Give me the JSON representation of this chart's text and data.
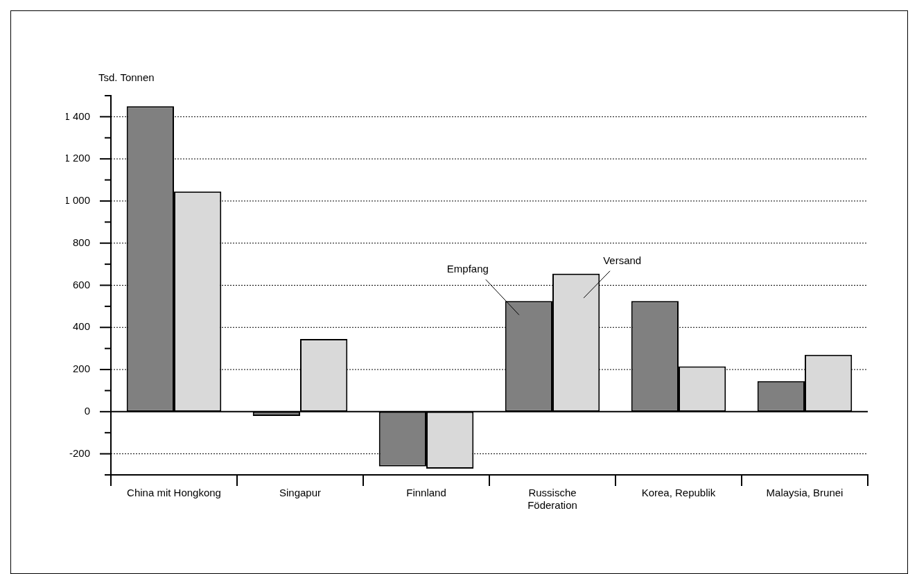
{
  "chart_data": {
    "type": "bar",
    "ylabel": "Tsd. Tonnen",
    "categories": [
      "China mit Hongkong",
      "Singapur",
      "Finnland",
      "Russische Föderation",
      "Korea, Republik",
      "Malaysia, Brunei"
    ],
    "series": [
      {
        "name": "Empfang",
        "color": "#808080",
        "values": [
          1450,
          -20,
          -260,
          525,
          525,
          145
        ]
      },
      {
        "name": "Versand",
        "color": "#d9d9d9",
        "values": [
          1045,
          345,
          -270,
          655,
          215,
          270
        ]
      }
    ],
    "ylim": [
      -300,
      1500
    ],
    "yticks": [
      {
        "value": -300,
        "label": null
      },
      {
        "value": -200,
        "label": "-200"
      },
      {
        "value": -100,
        "label": null
      },
      0,
      {
        "value": 100,
        "label": null
      },
      200,
      {
        "value": 300,
        "label": null
      },
      400,
      {
        "value": 500,
        "label": null
      },
      600,
      {
        "value": 700,
        "label": null
      },
      800,
      {
        "value": 900,
        "label": null
      },
      {
        "value": 1000,
        "label": "1 000"
      },
      {
        "value": 1100,
        "label": null
      },
      {
        "value": 1200,
        "label": "1 200"
      },
      {
        "value": 1300,
        "label": null
      },
      {
        "value": 1400,
        "label": "1 400"
      },
      {
        "value": 1500,
        "label": null
      }
    ],
    "grid": "y",
    "legend": false
  }
}
